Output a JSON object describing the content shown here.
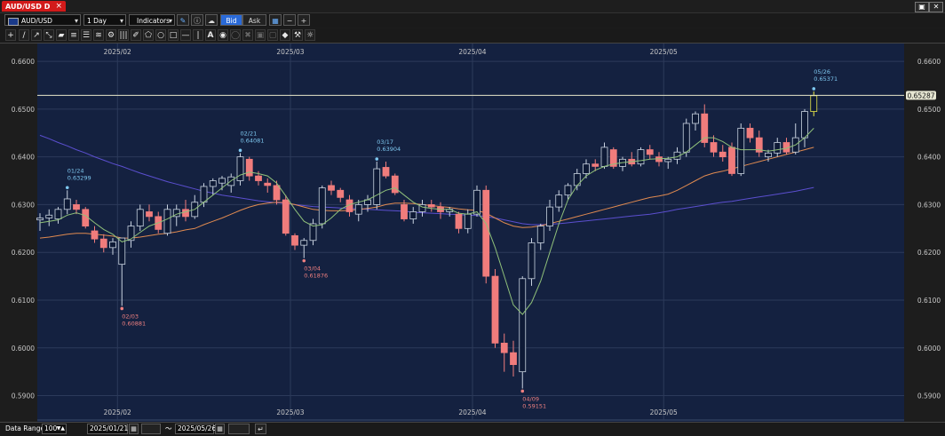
{
  "window": {
    "tab_title": "AUD/USD D",
    "close_glyph": "×",
    "restore_glyph": "▣",
    "close_btn_glyph": "✕"
  },
  "toolbar": {
    "symbol": "AUD/USD",
    "interval": "1 Day",
    "indicators_label": "Indicators",
    "bid_label": "Bid",
    "ask_label": "Ask",
    "icons": [
      "pencil-icon",
      "info-icon",
      "cloud-icon",
      "chart-type-icon",
      "zoom-out-icon",
      "zoom-in-icon"
    ]
  },
  "drawing_tools": [
    "crosshair-icon",
    "line-icon",
    "ray-icon",
    "extended-line-icon",
    "eraser-icon",
    "horizontal-channel-icon",
    "vertical-lines-icon",
    "fibonacci-fan-icon",
    "pitchfork-icon",
    "gann-icon",
    "brush-icon",
    "polygon-icon",
    "circle-icon",
    "rectangle-icon",
    "horizontal-line-icon",
    "vertical-line-icon",
    "text-icon",
    "label-icon",
    "hide-icon",
    "delete-icon",
    "lock-icon",
    "unlock-icon",
    "magnet-icon",
    "settings-icon",
    "palette-icon"
  ],
  "bottom": {
    "data_range_label": "Data Range:",
    "data_range_value": "100",
    "start_date": "2025/01/21",
    "tilde": "〜",
    "end_date": "2025/05/26"
  },
  "colors": {
    "up": "#0e1a36",
    "up_edge": "#c8d2e0",
    "down": "#f07c7c",
    "ma_short": "#8fc07a",
    "ma_mid": "#e08a50",
    "ma_long": "#5b4fcf",
    "last_line": "#e6e6c8",
    "bg": "#142140",
    "grid": "#2c3a5a"
  },
  "chart_data": {
    "type": "candlestick",
    "y_ticks": [
      "0.6600",
      "0.6500",
      "0.6400",
      "0.6300",
      "0.6200",
      "0.6100",
      "0.6000",
      "0.5900"
    ],
    "ylim": [
      0.5875,
      0.6615
    ],
    "x_month_labels": [
      {
        "label": "2025/02",
        "index": 9
      },
      {
        "label": "2025/03",
        "index": 28
      },
      {
        "label": "2025/04",
        "index": 48
      },
      {
        "label": "2025/05",
        "index": 69
      }
    ],
    "last_price_label": "0.65287",
    "last_price": 0.65287,
    "annotations": [
      {
        "date": "01/24",
        "price": "0.63299",
        "index": 3,
        "value": 0.633,
        "kind": "high"
      },
      {
        "date": "02/21",
        "price": "0.64081",
        "index": 22,
        "value": 0.6408,
        "kind": "high"
      },
      {
        "date": "03/17",
        "price": "0.63904",
        "index": 37,
        "value": 0.639,
        "kind": "high"
      },
      {
        "date": "05/26",
        "price": "0.65371",
        "index": 85,
        "value": 0.6537,
        "kind": "high"
      },
      {
        "date": "02/03",
        "price": "0.60881",
        "index": 9,
        "value": 0.6088,
        "kind": "low"
      },
      {
        "date": "03/04",
        "price": "0.61876",
        "index": 29,
        "value": 0.6188,
        "kind": "low"
      },
      {
        "date": "04/09",
        "price": "0.59151",
        "index": 53,
        "value": 0.5915,
        "kind": "low"
      }
    ],
    "candles": [
      [
        0.6268,
        0.6282,
        0.6245,
        0.6272
      ],
      [
        0.6272,
        0.629,
        0.6255,
        0.6278
      ],
      [
        0.627,
        0.6295,
        0.626,
        0.629
      ],
      [
        0.629,
        0.633,
        0.628,
        0.6312
      ],
      [
        0.63,
        0.631,
        0.628,
        0.629
      ],
      [
        0.629,
        0.6295,
        0.625,
        0.6255
      ],
      [
        0.6245,
        0.6255,
        0.622,
        0.6228
      ],
      [
        0.6228,
        0.6238,
        0.62,
        0.621
      ],
      [
        0.621,
        0.623,
        0.6195,
        0.6222
      ],
      [
        0.6175,
        0.6225,
        0.6088,
        0.623
      ],
      [
        0.6225,
        0.6265,
        0.621,
        0.6255
      ],
      [
        0.6255,
        0.63,
        0.6245,
        0.629
      ],
      [
        0.6285,
        0.63,
        0.6265,
        0.6275
      ],
      [
        0.6275,
        0.6285,
        0.624,
        0.6248
      ],
      [
        0.624,
        0.63,
        0.6235,
        0.629
      ],
      [
        0.6275,
        0.63,
        0.6255,
        0.629
      ],
      [
        0.629,
        0.631,
        0.6265,
        0.6275
      ],
      [
        0.6275,
        0.632,
        0.627,
        0.6305
      ],
      [
        0.6305,
        0.6345,
        0.6295,
        0.6338
      ],
      [
        0.6338,
        0.6355,
        0.632,
        0.635
      ],
      [
        0.6345,
        0.636,
        0.633,
        0.6355
      ],
      [
        0.634,
        0.6365,
        0.6325,
        0.6358
      ],
      [
        0.635,
        0.6408,
        0.634,
        0.64
      ],
      [
        0.6395,
        0.64,
        0.635,
        0.636
      ],
      [
        0.636,
        0.637,
        0.634,
        0.635
      ],
      [
        0.6345,
        0.6355,
        0.6325,
        0.634
      ],
      [
        0.634,
        0.635,
        0.63,
        0.631
      ],
      [
        0.631,
        0.632,
        0.6235,
        0.624
      ],
      [
        0.6235,
        0.624,
        0.6205,
        0.6215
      ],
      [
        0.6215,
        0.623,
        0.6188,
        0.6225
      ],
      [
        0.6225,
        0.627,
        0.6215,
        0.626
      ],
      [
        0.626,
        0.634,
        0.625,
        0.6335
      ],
      [
        0.634,
        0.635,
        0.632,
        0.633
      ],
      [
        0.633,
        0.6335,
        0.6305,
        0.6315
      ],
      [
        0.631,
        0.632,
        0.6275,
        0.6285
      ],
      [
        0.628,
        0.631,
        0.6265,
        0.63
      ],
      [
        0.63,
        0.632,
        0.6285,
        0.631
      ],
      [
        0.63,
        0.639,
        0.629,
        0.6375
      ],
      [
        0.6378,
        0.639,
        0.6355,
        0.636
      ],
      [
        0.636,
        0.6365,
        0.632,
        0.6325
      ],
      [
        0.63,
        0.631,
        0.6265,
        0.627
      ],
      [
        0.627,
        0.6295,
        0.626,
        0.6285
      ],
      [
        0.6285,
        0.631,
        0.6275,
        0.63
      ],
      [
        0.63,
        0.631,
        0.6285,
        0.6295
      ],
      [
        0.6295,
        0.6305,
        0.627,
        0.6285
      ],
      [
        0.6285,
        0.6295,
        0.6275,
        0.629
      ],
      [
        0.628,
        0.6285,
        0.624,
        0.625
      ],
      [
        0.625,
        0.629,
        0.624,
        0.628
      ],
      [
        0.628,
        0.634,
        0.6275,
        0.633
      ],
      [
        0.633,
        0.634,
        0.6135,
        0.615
      ],
      [
        0.615,
        0.6165,
        0.6,
        0.601
      ],
      [
        0.601,
        0.603,
        0.595,
        0.599
      ],
      [
        0.599,
        0.6015,
        0.594,
        0.5965
      ],
      [
        0.595,
        0.615,
        0.5915,
        0.6145
      ],
      [
        0.6145,
        0.623,
        0.613,
        0.622
      ],
      [
        0.622,
        0.626,
        0.6205,
        0.6255
      ],
      [
        0.6255,
        0.631,
        0.6245,
        0.6295
      ],
      [
        0.6295,
        0.633,
        0.6285,
        0.632
      ],
      [
        0.632,
        0.6345,
        0.631,
        0.634
      ],
      [
        0.634,
        0.6375,
        0.633,
        0.6365
      ],
      [
        0.6365,
        0.6395,
        0.6355,
        0.6385
      ],
      [
        0.6385,
        0.6395,
        0.637,
        0.638
      ],
      [
        0.638,
        0.643,
        0.6375,
        0.642
      ],
      [
        0.6415,
        0.642,
        0.6375,
        0.638
      ],
      [
        0.638,
        0.64,
        0.637,
        0.6395
      ],
      [
        0.6395,
        0.641,
        0.638,
        0.6385
      ],
      [
        0.6385,
        0.642,
        0.638,
        0.6415
      ],
      [
        0.6415,
        0.6425,
        0.6395,
        0.6405
      ],
      [
        0.64,
        0.641,
        0.638,
        0.639
      ],
      [
        0.639,
        0.64,
        0.6375,
        0.6395
      ],
      [
        0.6395,
        0.642,
        0.6385,
        0.641
      ],
      [
        0.641,
        0.648,
        0.64,
        0.647
      ],
      [
        0.647,
        0.6495,
        0.6455,
        0.649
      ],
      [
        0.649,
        0.651,
        0.642,
        0.643
      ],
      [
        0.643,
        0.6445,
        0.64,
        0.641
      ],
      [
        0.641,
        0.6425,
        0.639,
        0.64
      ],
      [
        0.642,
        0.643,
        0.636,
        0.6365
      ],
      [
        0.6365,
        0.647,
        0.636,
        0.646
      ],
      [
        0.646,
        0.647,
        0.643,
        0.644
      ],
      [
        0.644,
        0.6455,
        0.64,
        0.641
      ],
      [
        0.64,
        0.6415,
        0.639,
        0.6408
      ],
      [
        0.6408,
        0.644,
        0.64,
        0.643
      ],
      [
        0.643,
        0.644,
        0.6405,
        0.641
      ],
      [
        0.641,
        0.647,
        0.6405,
        0.644
      ],
      [
        0.644,
        0.65,
        0.642,
        0.6495
      ],
      [
        0.6495,
        0.6537,
        0.6485,
        0.6528
      ]
    ],
    "ma_short": [
      0.6262,
      0.6265,
      0.6268,
      0.6278,
      0.6283,
      0.6277,
      0.6262,
      0.6248,
      0.6238,
      0.6222,
      0.6228,
      0.6242,
      0.6255,
      0.6262,
      0.627,
      0.628,
      0.6285,
      0.629,
      0.6305,
      0.632,
      0.6335,
      0.635,
      0.6362,
      0.6368,
      0.6365,
      0.636,
      0.6345,
      0.6318,
      0.629,
      0.6265,
      0.6255,
      0.6258,
      0.6272,
      0.629,
      0.63,
      0.6305,
      0.631,
      0.632,
      0.633,
      0.6335,
      0.632,
      0.6305,
      0.6295,
      0.6292,
      0.629,
      0.629,
      0.6282,
      0.628,
      0.6285,
      0.626,
      0.621,
      0.615,
      0.609,
      0.607,
      0.6095,
      0.614,
      0.62,
      0.626,
      0.631,
      0.634,
      0.636,
      0.6372,
      0.638,
      0.6385,
      0.6388,
      0.639,
      0.6392,
      0.6395,
      0.6396,
      0.6397,
      0.64,
      0.641,
      0.6425,
      0.644,
      0.644,
      0.6432,
      0.642,
      0.6415,
      0.6415,
      0.6415,
      0.6412,
      0.6415,
      0.6418,
      0.6425,
      0.644,
      0.646
    ],
    "ma_mid": [
      0.623,
      0.6232,
      0.6235,
      0.6238,
      0.624,
      0.624,
      0.6238,
      0.6236,
      0.6234,
      0.623,
      0.623,
      0.6232,
      0.6235,
      0.6238,
      0.624,
      0.6243,
      0.6247,
      0.625,
      0.6258,
      0.6265,
      0.6272,
      0.628,
      0.6288,
      0.6295,
      0.63,
      0.6303,
      0.6305,
      0.6304,
      0.63,
      0.6295,
      0.629,
      0.6288,
      0.6287,
      0.6287,
      0.6288,
      0.629,
      0.6292,
      0.6295,
      0.63,
      0.6303,
      0.6303,
      0.6302,
      0.63,
      0.6298,
      0.6296,
      0.6294,
      0.6291,
      0.6289,
      0.6288,
      0.6282,
      0.6272,
      0.6262,
      0.6255,
      0.6252,
      0.6253,
      0.6256,
      0.626,
      0.6265,
      0.627,
      0.6275,
      0.628,
      0.6285,
      0.629,
      0.6295,
      0.63,
      0.6305,
      0.631,
      0.6315,
      0.6318,
      0.6322,
      0.633,
      0.634,
      0.635,
      0.636,
      0.6366,
      0.637,
      0.6375,
      0.638,
      0.6385,
      0.639,
      0.6395,
      0.64,
      0.6405,
      0.641,
      0.6415,
      0.642
    ],
    "ma_long": [
      0.6445,
      0.6438,
      0.643,
      0.6423,
      0.6415,
      0.6408,
      0.64,
      0.6393,
      0.6386,
      0.638,
      0.6373,
      0.6366,
      0.636,
      0.6354,
      0.6348,
      0.6343,
      0.6338,
      0.6333,
      0.6328,
      0.6324,
      0.632,
      0.6317,
      0.6314,
      0.6311,
      0.6308,
      0.6306,
      0.6304,
      0.6302,
      0.63,
      0.6298,
      0.6296,
      0.6295,
      0.6294,
      0.6293,
      0.6292,
      0.6291,
      0.629,
      0.6289,
      0.6288,
      0.6287,
      0.6286,
      0.6284,
      0.6283,
      0.6282,
      0.6281,
      0.628,
      0.6279,
      0.6278,
      0.6277,
      0.6275,
      0.6272,
      0.6268,
      0.6264,
      0.626,
      0.6258,
      0.6258,
      0.6259,
      0.626,
      0.6262,
      0.6264,
      0.6266,
      0.6268,
      0.627,
      0.6272,
      0.6274,
      0.6276,
      0.6278,
      0.628,
      0.6283,
      0.6286,
      0.629,
      0.6293,
      0.6296,
      0.6299,
      0.6302,
      0.6305,
      0.6307,
      0.631,
      0.6313,
      0.6316,
      0.6319,
      0.6322,
      0.6325,
      0.6328,
      0.6332,
      0.6336
    ]
  }
}
